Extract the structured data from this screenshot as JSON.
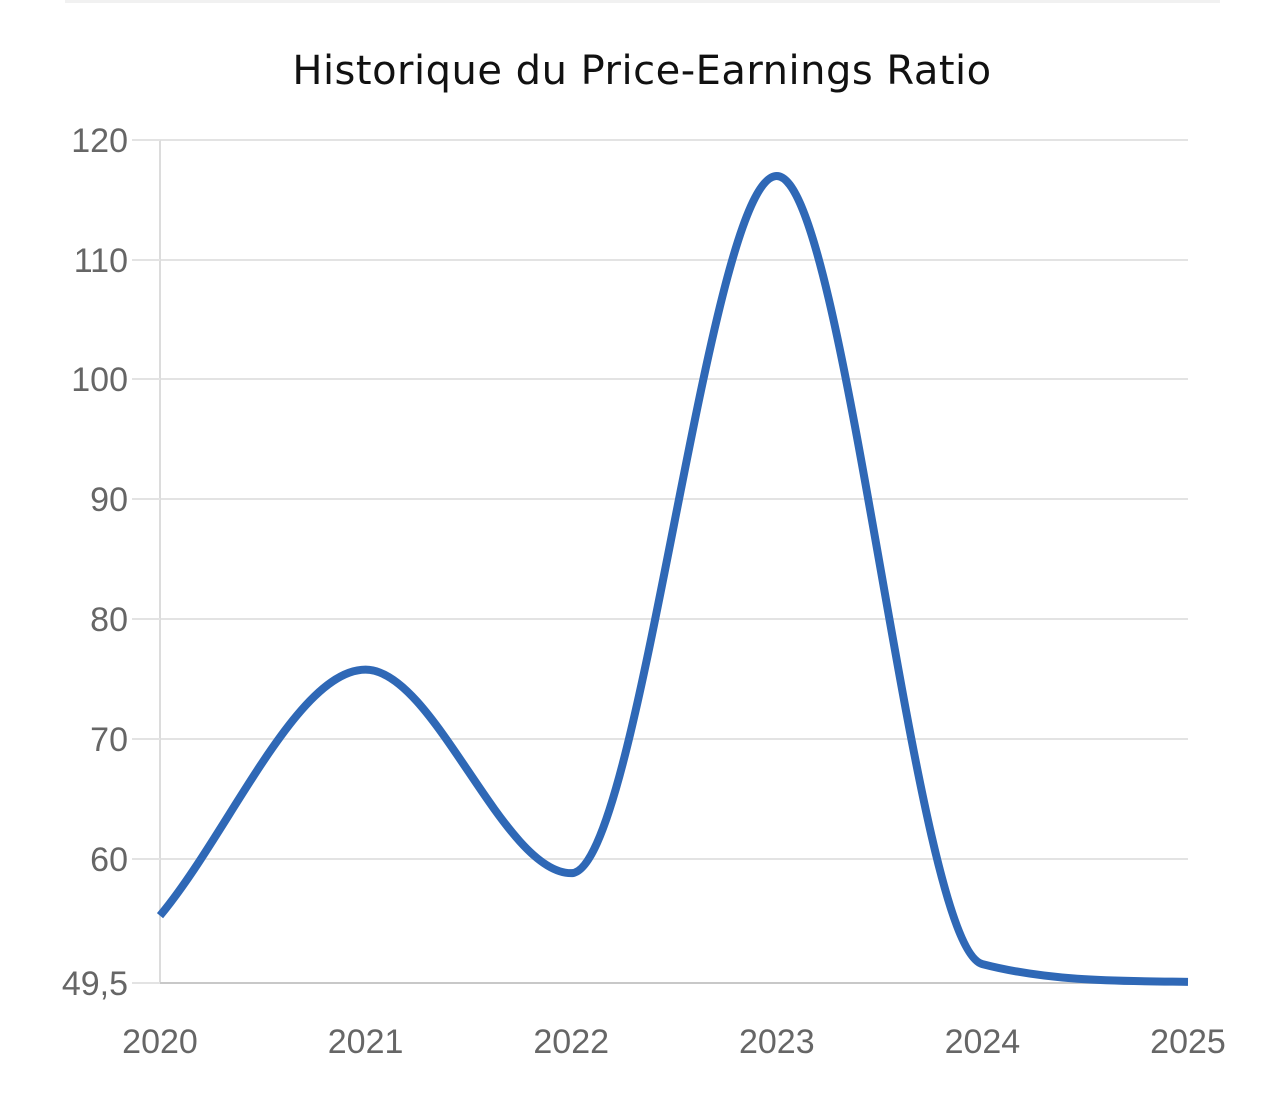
{
  "chart_data": {
    "type": "line",
    "title": "Historique du Price-Earnings Ratio",
    "xlabel": "",
    "ylabel": "",
    "x": [
      2020,
      2021,
      2022,
      2023,
      2024,
      2025
    ],
    "x_tick_labels": [
      "2020",
      "2021",
      "2022",
      "2023",
      "2024",
      "2025"
    ],
    "y_tick_values": [
      49.5,
      60,
      70,
      80,
      90,
      100,
      110,
      120
    ],
    "y_tick_labels": [
      "49,5",
      "60",
      "70",
      "80",
      "90",
      "100",
      "110",
      "120"
    ],
    "ylim": [
      49.5,
      120
    ],
    "xlim": [
      2020,
      2025
    ],
    "grid": true,
    "legend": "none",
    "series": [
      {
        "values": [
          55.2,
          75.8,
          58.8,
          117.0,
          51.1,
          49.6
        ],
        "color": "#2f68b6"
      }
    ]
  }
}
